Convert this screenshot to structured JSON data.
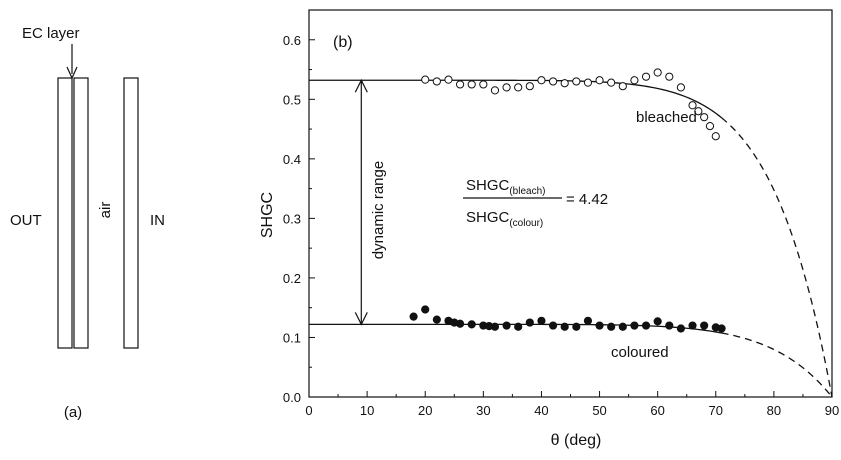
{
  "schematic": {
    "ec_label": "EC layer",
    "out_label": "OUT",
    "air_label": "air",
    "in_label": "IN",
    "panel_label": "(a)"
  },
  "chart_data": {
    "type": "scatter",
    "panel_label": "(b)",
    "xlabel": "θ (deg)",
    "ylabel": "SHGC",
    "xlim": [
      0,
      90
    ],
    "ylim": [
      0,
      0.65
    ],
    "xticks": [
      0,
      10,
      20,
      30,
      40,
      50,
      60,
      70,
      80,
      90
    ],
    "yticks": [
      0.0,
      0.1,
      0.2,
      0.3,
      0.4,
      0.5,
      0.6
    ],
    "grid": false,
    "series": [
      {
        "name": "bleached",
        "marker": "open-circle",
        "x": [
          20,
          22,
          24,
          26,
          28,
          30,
          32,
          34,
          36,
          38,
          40,
          42,
          44,
          46,
          48,
          50,
          52,
          54,
          56,
          58,
          60,
          62,
          64,
          66,
          67,
          68,
          69,
          70
        ],
        "y": [
          0.533,
          0.53,
          0.533,
          0.525,
          0.525,
          0.525,
          0.515,
          0.52,
          0.52,
          0.522,
          0.532,
          0.53,
          0.527,
          0.53,
          0.528,
          0.532,
          0.528,
          0.522,
          0.532,
          0.538,
          0.545,
          0.538,
          0.52,
          0.49,
          0.48,
          0.47,
          0.455,
          0.438
        ]
      },
      {
        "name": "coloured",
        "marker": "filled-circle",
        "x": [
          18,
          20,
          22,
          24,
          25,
          26,
          28,
          30,
          31,
          32,
          34,
          36,
          38,
          40,
          42,
          44,
          46,
          48,
          50,
          52,
          54,
          56,
          58,
          60,
          62,
          64,
          66,
          68,
          70,
          71
        ],
        "y": [
          0.135,
          0.147,
          0.13,
          0.128,
          0.125,
          0.123,
          0.122,
          0.12,
          0.119,
          0.118,
          0.12,
          0.118,
          0.125,
          0.128,
          0.12,
          0.118,
          0.118,
          0.128,
          0.12,
          0.118,
          0.118,
          0.12,
          0.12,
          0.127,
          0.12,
          0.115,
          0.12,
          0.12,
          0.117,
          0.115
        ]
      }
    ],
    "fits": [
      {
        "series": "bleached",
        "y0": 0.532,
        "solid_to": 71,
        "dashed_to": 90,
        "end_value": 0.0
      },
      {
        "series": "coloured",
        "y0": 0.122,
        "solid_to": 71,
        "dashed_to": 90,
        "end_value": 0.0
      }
    ],
    "annotations": {
      "dynamic_range": "dynamic range",
      "ratio_numerator": "SHGC",
      "ratio_num_sub": "(bleach)",
      "ratio_denominator": "SHGC",
      "ratio_den_sub": "(colour)",
      "ratio_value": "= 4.42"
    }
  }
}
